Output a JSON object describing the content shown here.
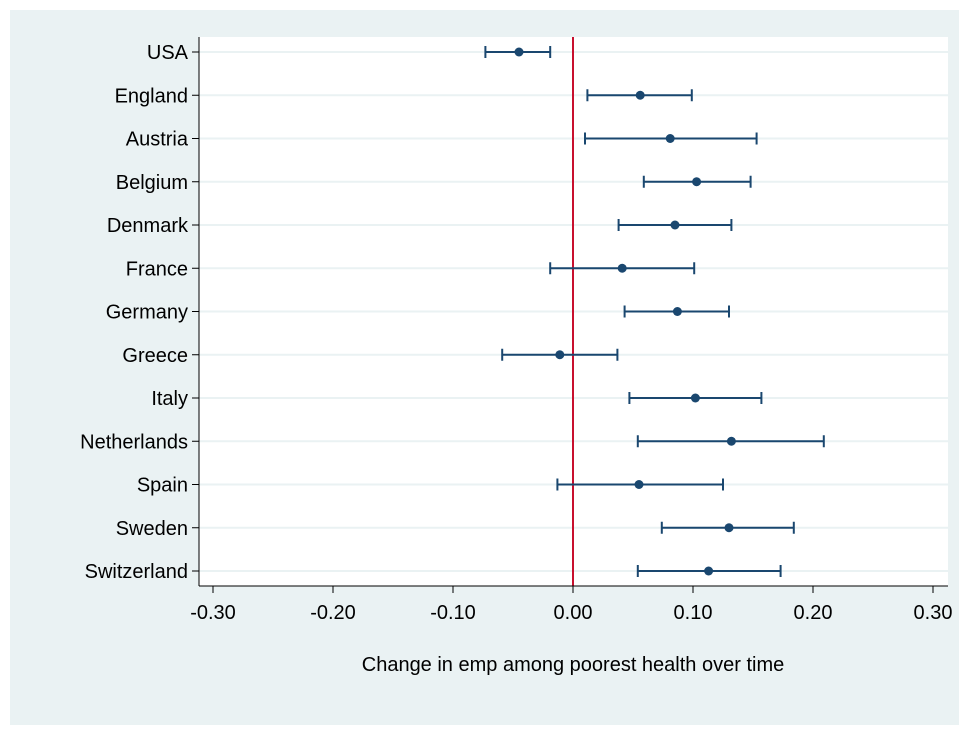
{
  "chart_data": {
    "type": "scatter",
    "subtype": "coefficient-plot-with-confidence-intervals",
    "orientation": "horizontal",
    "title": "",
    "xlabel": "Change in emp among poorest health over time",
    "ylabel": "",
    "xlim": [
      -0.3,
      0.3
    ],
    "xticks": [
      -0.3,
      -0.2,
      -0.1,
      0.0,
      0.1,
      0.2,
      0.3
    ],
    "xtick_labels": [
      "-0.30",
      "-0.20",
      "-0.10",
      "0.00",
      "0.10",
      "0.20",
      "0.30"
    ],
    "reference_line": {
      "x": 0.0,
      "color": "#c8102e"
    },
    "grid": "horizontal",
    "legend": "none",
    "colors": {
      "marker": "#1a476f",
      "background": "#eaf2f3",
      "plot_background": "#ffffff",
      "grid": "#eaf2f3"
    },
    "categories": [
      "USA",
      "England",
      "Austria",
      "Belgium",
      "Denmark",
      "France",
      "Germany",
      "Greece",
      "Italy",
      "Netherlands",
      "Spain",
      "Sweden",
      "Switzerland"
    ],
    "estimates": [
      -0.045,
      0.056,
      0.081,
      0.103,
      0.085,
      0.041,
      0.087,
      -0.011,
      0.102,
      0.132,
      0.055,
      0.13,
      0.113
    ],
    "ci_low": [
      -0.073,
      0.012,
      0.01,
      0.059,
      0.038,
      -0.019,
      0.043,
      -0.059,
      0.047,
      0.054,
      -0.013,
      0.074,
      0.054
    ],
    "ci_high": [
      -0.019,
      0.099,
      0.153,
      0.148,
      0.132,
      0.101,
      0.13,
      0.037,
      0.157,
      0.209,
      0.125,
      0.184,
      0.173
    ]
  }
}
